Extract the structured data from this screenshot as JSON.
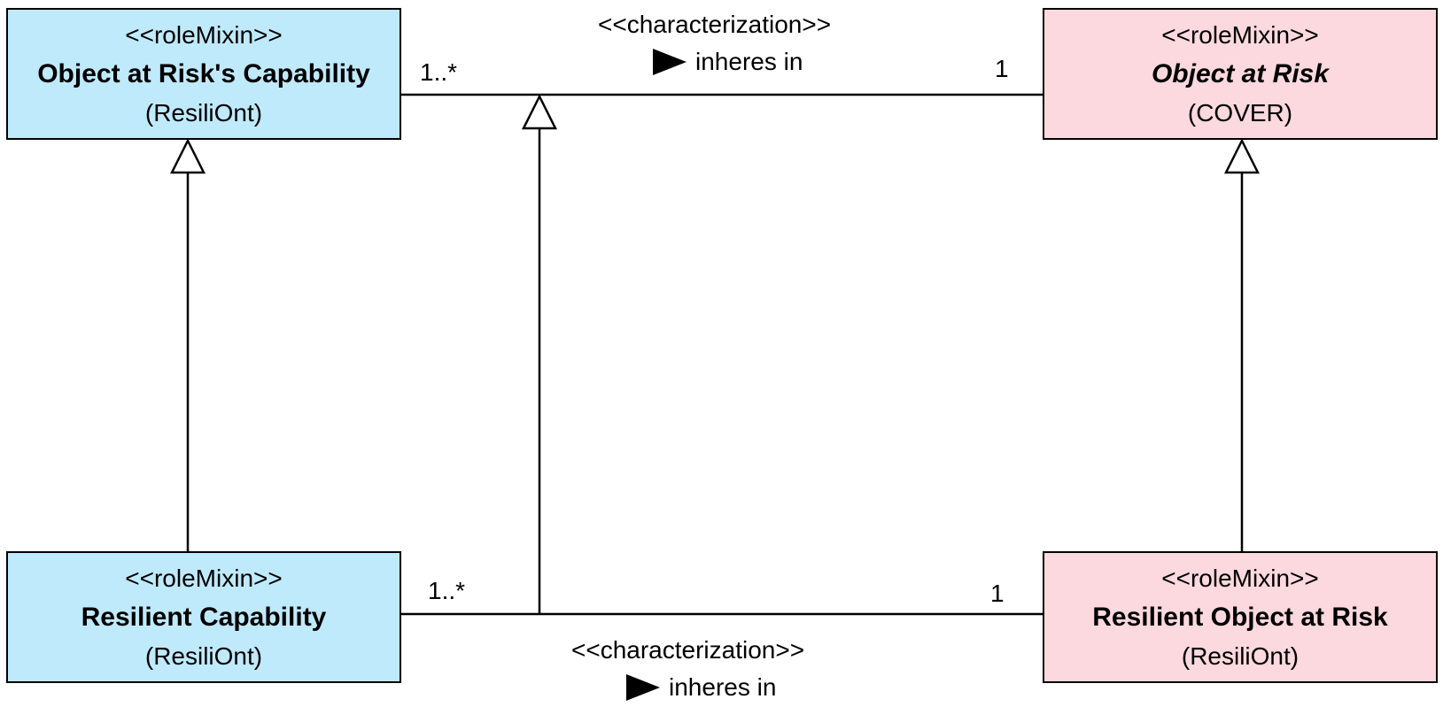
{
  "classes": {
    "object_at_risk_capability": {
      "stereotype": "<<roleMixin>>",
      "name": "Object at Risk's Capability",
      "package": "(ResiliOnt)",
      "fill": "#bfeafc"
    },
    "object_at_risk": {
      "stereotype": "<<roleMixin>>",
      "name": "Object at Risk",
      "package": "(COVER)",
      "fill": "#fcd9de"
    },
    "resilient_capability": {
      "stereotype": "<<roleMixin>>",
      "name": "Resilient Capability",
      "package": "(ResiliOnt)",
      "fill": "#bfeafc"
    },
    "resilient_object_at_risk": {
      "stereotype": "<<roleMixin>>",
      "name": "Resilient Object at Risk",
      "package": "(ResiliOnt)",
      "fill": "#fcd9de"
    }
  },
  "associations": {
    "top": {
      "stereotype": "<<characterization>>",
      "name": "inheres in",
      "source_multiplicity": "1..*",
      "target_multiplicity": "1"
    },
    "bottom": {
      "stereotype": "<<characterization>>",
      "name": "inheres in",
      "source_multiplicity": "1..*",
      "target_multiplicity": "1"
    }
  }
}
